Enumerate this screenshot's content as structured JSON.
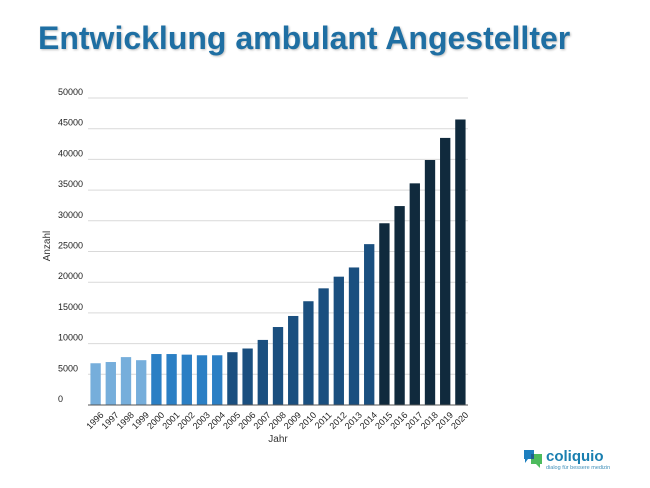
{
  "title": "Entwicklung ambulant Angestellter",
  "brand": {
    "name": "coliquio",
    "tagline": "dialog für bessere medizin"
  },
  "colors": {
    "title": "#1f6fa3",
    "light_blue": "#76aedb",
    "medium_blue": "#2b7fc4",
    "dark_blue": "#1a4f7f",
    "navy": "#102a3d"
  },
  "chart_data": {
    "type": "bar",
    "title": "Entwicklung ambulant Angestellter",
    "xlabel": "Jahr",
    "ylabel": "Anzahl",
    "ylim": [
      0,
      50000
    ],
    "yticks": [
      0,
      5000,
      10000,
      15000,
      20000,
      25000,
      30000,
      35000,
      40000,
      45000,
      50000
    ],
    "grid": true,
    "categories": [
      "1996",
      "1997",
      "1998",
      "1999",
      "2000",
      "2001",
      "2002",
      "2003",
      "2004",
      "2005",
      "2006",
      "2007",
      "2008",
      "2009",
      "2010",
      "2011",
      "2012",
      "2013",
      "2014",
      "2015",
      "2016",
      "2017",
      "2018",
      "2019",
      "2020"
    ],
    "values": [
      6800,
      7000,
      7800,
      7300,
      8300,
      8300,
      8200,
      8100,
      8100,
      8600,
      9200,
      10600,
      12700,
      14500,
      16900,
      19000,
      20900,
      22400,
      26200,
      29600,
      32400,
      36100,
      39900,
      43500,
      46500
    ],
    "bar_colors": [
      "#76aedb",
      "#76aedb",
      "#76aedb",
      "#76aedb",
      "#2b7fc4",
      "#2b7fc4",
      "#2b7fc4",
      "#2b7fc4",
      "#2b7fc4",
      "#1a4f7f",
      "#1a4f7f",
      "#1a4f7f",
      "#1a4f7f",
      "#1a4f7f",
      "#1a4f7f",
      "#1a4f7f",
      "#1a4f7f",
      "#1a4f7f",
      "#1a4f7f",
      "#102a3d",
      "#102a3d",
      "#102a3d",
      "#102a3d",
      "#102a3d",
      "#102a3d"
    ]
  }
}
